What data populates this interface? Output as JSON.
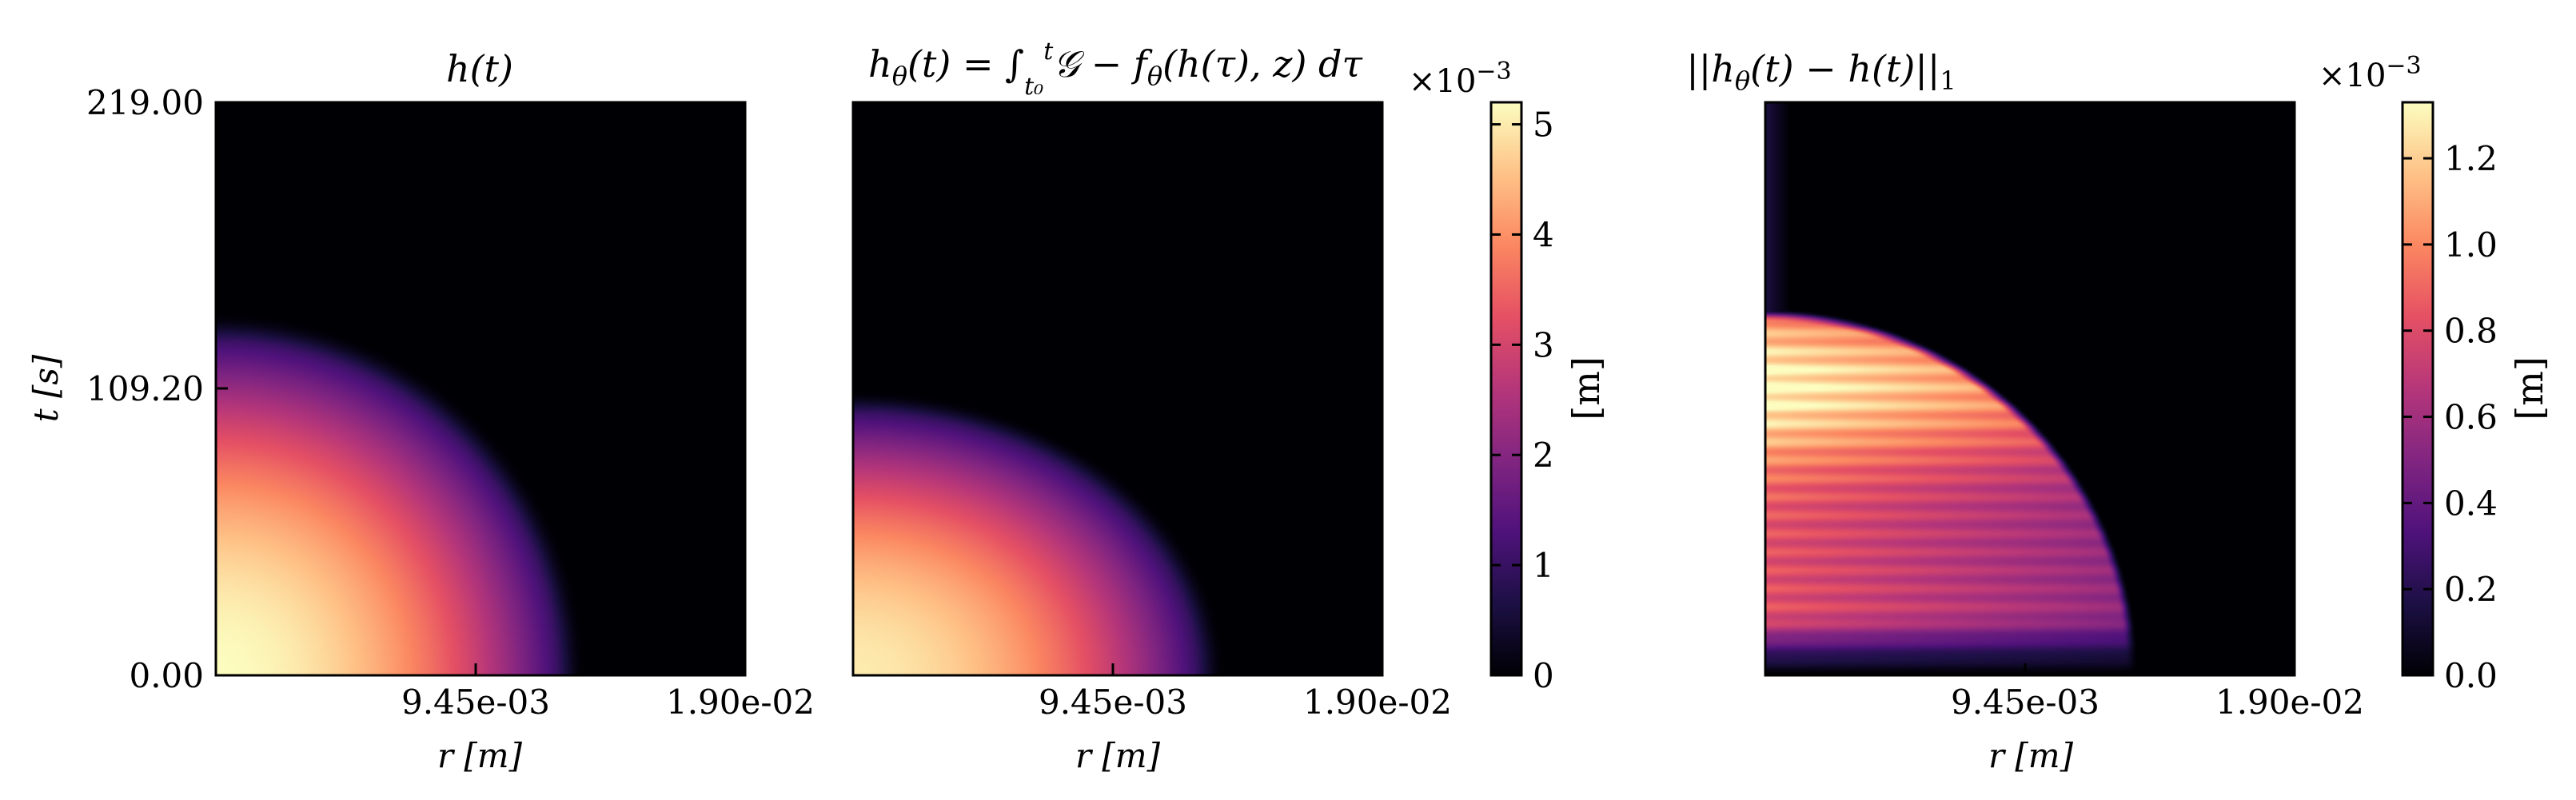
{
  "chart_data": [
    {
      "type": "heatmap",
      "title": "h(t)",
      "xlabel": "r [m]",
      "ylabel": "t [s]",
      "xlim": [
        0,
        0.019
      ],
      "ylim": [
        0,
        219.0
      ],
      "x_tick_labels": [
        "9.45e-03",
        "1.90e-02"
      ],
      "x_tick_values": [
        0.00945,
        0.019
      ],
      "y_tick_labels": [
        "0.00",
        "109.20",
        "219.00"
      ],
      "y_tick_values": [
        0.0,
        109.2,
        219.0
      ],
      "colormap": "magma",
      "value_range": [
        0,
        0.0052
      ],
      "description_of_field": {
        "max_value": 0.0052,
        "front_radius_at_t0": 0.0134,
        "front_time_at_r0": 140.0
      }
    },
    {
      "type": "heatmap",
      "title_parts": [
        "h",
        "θ",
        "(t) = ∫",
        "t₀",
        "t",
        "𝒢 − f",
        "θ",
        "(h(τ), z) dτ"
      ],
      "xlabel": "r [m]",
      "xlim": [
        0,
        0.019
      ],
      "ylim": [
        0,
        219.0
      ],
      "x_tick_labels": [
        "9.45e-03",
        "1.90e-02"
      ],
      "x_tick_values": [
        0.00945,
        0.019
      ],
      "colormap": "magma",
      "value_range": [
        0,
        0.0052
      ],
      "description_of_field": {
        "max_value": 0.005,
        "front_radius_at_t0": 0.0135,
        "front_time_at_r0": 110.0
      }
    },
    {
      "type": "heatmap",
      "title_parts": [
        "||h",
        "θ",
        "(t) − h(t)||",
        "1"
      ],
      "xlabel": "r [m]",
      "xlim": [
        0,
        0.019
      ],
      "ylim": [
        0,
        219.0
      ],
      "x_tick_labels": [
        "9.45e-03",
        "1.90e-02"
      ],
      "x_tick_values": [
        0.00945,
        0.019
      ],
      "colormap": "magma",
      "value_range": [
        0,
        0.00133
      ],
      "description_of_field": {
        "max_value": 0.00133,
        "peak_time": 110.0,
        "front_radius_at_t0": 0.0134,
        "front_time_at_r0": 140.0
      }
    }
  ],
  "colorbars": [
    {
      "label": "[m]",
      "exponent_base": "×10",
      "exponent_power": "−3",
      "range": [
        0,
        5.2
      ],
      "ticks": [
        "0",
        "1",
        "2",
        "3",
        "4",
        "5"
      ],
      "tick_values": [
        0,
        1,
        2,
        3,
        4,
        5
      ]
    },
    {
      "label": "[m]",
      "exponent_base": "×10",
      "exponent_power": "−3",
      "range": [
        0,
        1.33
      ],
      "ticks": [
        "0.0",
        "0.2",
        "0.4",
        "0.6",
        "0.8",
        "1.0",
        "1.2"
      ],
      "tick_values": [
        0.0,
        0.2,
        0.4,
        0.6,
        0.8,
        1.0,
        1.2
      ]
    }
  ],
  "colors": {
    "background": "#ffffff",
    "magma_stops": [
      "#000004",
      "#1c1044",
      "#4f127b",
      "#812581",
      "#b5367a",
      "#e55064",
      "#fb8761",
      "#fec287",
      "#fcfdbf"
    ]
  }
}
